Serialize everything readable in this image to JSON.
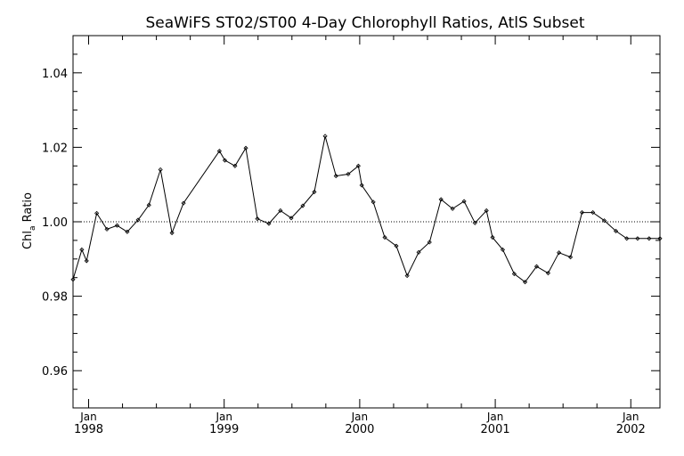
{
  "chart_data": {
    "type": "line",
    "title": "SeaWiFS ST02/ST00 4-Day Chlorophyll Ratios, AtlS Subset",
    "ylabel_main": "Chl",
    "ylabel_sub": "a",
    "ylabel_rest": " Ratio",
    "xlabel": "",
    "ylim": [
      0.95,
      1.05
    ],
    "xlim": [
      1997.885,
      2002.215
    ],
    "reference_line": 1.0,
    "y_ticks": [
      {
        "value": 0.96,
        "label": "0.96"
      },
      {
        "value": 0.98,
        "label": "0.98"
      },
      {
        "value": 1.0,
        "label": "1.00"
      },
      {
        "value": 1.02,
        "label": "1.02"
      },
      {
        "value": 1.04,
        "label": "1.04"
      }
    ],
    "x_ticks": [
      {
        "value": 1998,
        "month": "Jan",
        "year": "1998"
      },
      {
        "value": 1999,
        "month": "Jan",
        "year": "1999"
      },
      {
        "value": 2000,
        "month": "Jan",
        "year": "2000"
      },
      {
        "value": 2001,
        "month": "Jan",
        "year": "2001"
      },
      {
        "value": 2002,
        "month": "Jan",
        "year": "2002"
      }
    ],
    "series": [
      {
        "x": [
          1997.885,
          1997.95,
          1997.985,
          1998.06,
          1998.135,
          1998.21,
          1998.285,
          1998.365,
          1998.445,
          1998.53,
          1998.615,
          1998.7,
          1998.965,
          1999.005,
          1999.08,
          1999.16,
          1999.245,
          1999.33,
          1999.415,
          1999.495,
          1999.58,
          1999.665,
          1999.745,
          1999.825,
          1999.915,
          1999.99,
          2000.015,
          2000.1,
          2000.185,
          2000.27,
          2000.35,
          2000.435,
          2000.515,
          2000.6,
          2000.685,
          2000.77,
          2000.85,
          2000.935,
          2000.98,
          2001.055,
          2001.14,
          2001.22,
          2001.305,
          2001.39,
          2001.47,
          2001.555,
          2001.64,
          2001.72,
          2001.805,
          2001.89,
          2001.97,
          2002.05,
          2002.135,
          2002.215
        ],
        "y": [
          0.9845,
          0.9925,
          0.9895,
          1.0023,
          0.998,
          0.999,
          0.9973,
          1.0005,
          1.0045,
          1.014,
          0.997,
          1.005,
          1.019,
          1.0165,
          1.015,
          1.0198,
          1.0008,
          0.9995,
          1.003,
          1.001,
          1.0043,
          1.008,
          1.023,
          1.0123,
          1.0128,
          1.015,
          1.0098,
          1.0053,
          0.9958,
          0.9935,
          0.9855,
          0.9918,
          0.9945,
          1.006,
          1.0035,
          1.0055,
          0.9997,
          1.003,
          0.9958,
          0.9925,
          0.986,
          0.9838,
          0.988,
          0.9862,
          0.9917,
          0.9905,
          1.0025,
          1.0025,
          1.0003,
          0.9975,
          0.9955,
          0.9955,
          0.9955,
          0.9955
        ]
      }
    ]
  }
}
